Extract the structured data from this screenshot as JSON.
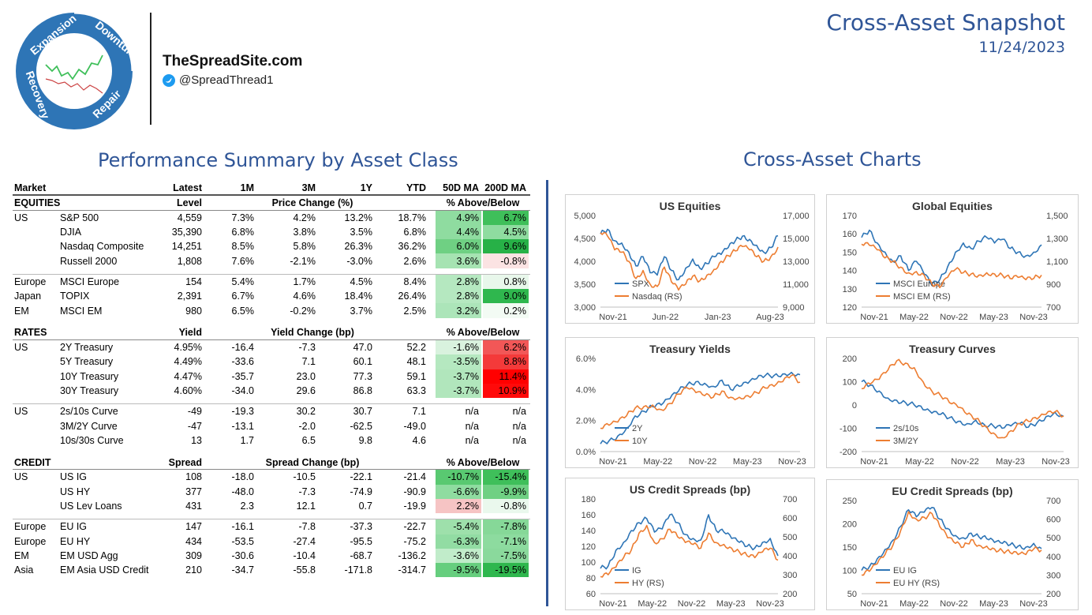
{
  "header": {
    "site": "TheSpreadSite.com",
    "handle": "@SpreadThread1",
    "title": "Cross-Asset Snapshot",
    "date": "11/24/2023",
    "logo_words": [
      "Expansion",
      "Downturn",
      "Repair",
      "Recovery"
    ]
  },
  "sections": {
    "perf_title": "Performance Summary by Asset Class",
    "charts_title": "Cross-Asset Charts"
  },
  "colors": {
    "brand_blue": "#2f5597",
    "series_blue": "#2e75b6",
    "series_orange": "#ed7d31",
    "green_strong": "#3fbf5a",
    "green_mid": "#8fdca0",
    "green_light": "#d9f2de",
    "red_strong": "#ff0000",
    "red_light": "#f8c8c8"
  },
  "table": {
    "columns": [
      "Market",
      "Latest",
      "1M",
      "3M",
      "1Y",
      "YTD",
      "50D MA",
      "200D MA"
    ],
    "equities": {
      "label": "EQUITIES",
      "level": "Level",
      "change": "Price Change (%)",
      "ma": "% Above/Below",
      "groups": [
        [
          {
            "region": "US",
            "name": "S&P 500",
            "level": "4,559",
            "m1": "7.3%",
            "m3": "4.2%",
            "y1": "13.2%",
            "ytd": "18.7%",
            "ma50": "4.9%",
            "ma200": "6.7%",
            "c50": "#8fdca0",
            "c200": "#3fbf5a"
          },
          {
            "region": "",
            "name": "DJIA",
            "level": "35,390",
            "m1": "6.8%",
            "m3": "3.8%",
            "y1": "3.5%",
            "ytd": "6.8%",
            "ma50": "4.4%",
            "ma200": "4.5%",
            "c50": "#8fdca0",
            "c200": "#8fdca0"
          },
          {
            "region": "",
            "name": "Nasdaq Composite",
            "level": "14,251",
            "m1": "8.5%",
            "m3": "5.8%",
            "y1": "26.3%",
            "ytd": "36.2%",
            "ma50": "6.0%",
            "ma200": "9.6%",
            "c50": "#6fd083",
            "c200": "#27b147"
          },
          {
            "region": "",
            "name": "Russell 2000",
            "level": "1,808",
            "m1": "7.6%",
            "m3": "-2.1%",
            "y1": "-3.0%",
            "ytd": "2.6%",
            "ma50": "3.6%",
            "ma200": "-0.8%",
            "c50": "#a6e3b2",
            "c200": "#fbe3e3"
          }
        ],
        [
          {
            "region": "Europe",
            "name": "MSCI Europe",
            "level": "154",
            "m1": "5.4%",
            "m3": "1.7%",
            "y1": "4.5%",
            "ytd": "8.4%",
            "ma50": "2.8%",
            "ma200": "0.8%",
            "c50": "#b5e8c0",
            "c200": "#e8f7eb"
          },
          {
            "region": "Japan",
            "name": "TOPIX",
            "level": "2,391",
            "m1": "6.7%",
            "m3": "4.6%",
            "y1": "18.4%",
            "ytd": "26.4%",
            "ma50": "2.8%",
            "ma200": "9.0%",
            "c50": "#b5e8c0",
            "c200": "#2fb74e"
          },
          {
            "region": "EM",
            "name": "MSCI EM",
            "level": "980",
            "m1": "6.5%",
            "m3": "-0.2%",
            "y1": "3.7%",
            "ytd": "2.5%",
            "ma50": "3.2%",
            "ma200": "0.2%",
            "c50": "#ace5b9",
            "c200": "#f3fbf4"
          }
        ]
      ]
    },
    "rates": {
      "label": "RATES",
      "level": "Yield",
      "change": "Yield Change (bp)",
      "ma": "% Above/Below",
      "groups": [
        [
          {
            "region": "US",
            "name": "2Y Treasury",
            "level": "4.95%",
            "m1": "-16.4",
            "m3": "-7.3",
            "y1": "47.0",
            "ytd": "52.2",
            "ma50": "-1.6%",
            "ma200": "6.2%",
            "c50": "#d9f2de",
            "c200": "#f25757"
          },
          {
            "region": "",
            "name": "5Y Treasury",
            "level": "4.49%",
            "m1": "-33.6",
            "m3": "7.1",
            "y1": "60.1",
            "ytd": "48.1",
            "ma50": "-3.5%",
            "ma200": "8.8%",
            "c50": "#b5e8c0",
            "c200": "#f43a3a"
          },
          {
            "region": "",
            "name": "10Y Treasury",
            "level": "4.47%",
            "m1": "-35.7",
            "m3": "23.0",
            "y1": "77.3",
            "ytd": "59.1",
            "ma50": "-3.7%",
            "ma200": "11.4%",
            "c50": "#b1e6bc",
            "c200": "#ff0000"
          },
          {
            "region": "",
            "name": "30Y Treasury",
            "level": "4.60%",
            "m1": "-34.0",
            "m3": "29.6",
            "y1": "86.8",
            "ytd": "63.3",
            "ma50": "-3.7%",
            "ma200": "10.9%",
            "c50": "#b1e6bc",
            "c200": "#ff0a0a"
          }
        ],
        [
          {
            "region": "US",
            "name": "2s/10s Curve",
            "level": "-49",
            "m1": "-19.3",
            "m3": "30.2",
            "y1": "30.7",
            "ytd": "7.1",
            "ma50": "n/a",
            "ma200": "n/a",
            "c50": "",
            "c200": ""
          },
          {
            "region": "",
            "name": "3M/2Y Curve",
            "level": "-47",
            "m1": "-13.1",
            "m3": "-2.0",
            "y1": "-62.5",
            "ytd": "-49.0",
            "ma50": "n/a",
            "ma200": "n/a",
            "c50": "",
            "c200": ""
          },
          {
            "region": "",
            "name": "10s/30s Curve",
            "level": "13",
            "m1": "1.7",
            "m3": "6.5",
            "y1": "9.8",
            "ytd": "4.6",
            "ma50": "n/a",
            "ma200": "n/a",
            "c50": "",
            "c200": ""
          }
        ]
      ]
    },
    "credit": {
      "label": "CREDIT",
      "level": "Spread",
      "change": "Spread Change (bp)",
      "ma": "% Above/Below",
      "groups": [
        [
          {
            "region": "US",
            "name": "US IG",
            "level": "108",
            "m1": "-18.0",
            "m3": "-10.5",
            "y1": "-22.1",
            "ytd": "-21.4",
            "ma50": "-10.7%",
            "ma200": "-15.4%",
            "c50": "#59c971",
            "c200": "#3fbf5a"
          },
          {
            "region": "",
            "name": "US HY",
            "level": "377",
            "m1": "-48.0",
            "m3": "-7.3",
            "y1": "-74.9",
            "ytd": "-90.9",
            "ma50": "-6.6%",
            "ma200": "-9.9%",
            "c50": "#8fdca0",
            "c200": "#6fd083"
          },
          {
            "region": "",
            "name": "US Lev Loans",
            "level": "431",
            "m1": "2.3",
            "m3": "12.1",
            "y1": "0.7",
            "ytd": "-19.9",
            "ma50": "2.2%",
            "ma200": "-0.8%",
            "c50": "#f6c4c4",
            "c200": "#eaf8ed"
          }
        ],
        [
          {
            "region": "Europe",
            "name": "EU IG",
            "level": "147",
            "m1": "-16.1",
            "m3": "-7.8",
            "y1": "-37.3",
            "ytd": "-22.7",
            "ma50": "-5.4%",
            "ma200": "-7.8%",
            "c50": "#9ee0ab",
            "c200": "#86d898"
          },
          {
            "region": "Europe",
            "name": "EU HY",
            "level": "434",
            "m1": "-53.5",
            "m3": "-27.4",
            "y1": "-95.5",
            "ytd": "-75.2",
            "ma50": "-6.3%",
            "ma200": "-7.1%",
            "c50": "#92dca3",
            "c200": "#8ddb9f"
          },
          {
            "region": "EM",
            "name": "EM USD Agg",
            "level": "309",
            "m1": "-30.6",
            "m3": "-10.4",
            "y1": "-68.7",
            "ytd": "-136.2",
            "ma50": "-3.6%",
            "ma200": "-7.5%",
            "c50": "#c1ecca",
            "c200": "#8ad99c"
          },
          {
            "region": "Asia",
            "name": "EM Asia USD Credit",
            "level": "210",
            "m1": "-34.7",
            "m3": "-55.8",
            "y1": "-171.8",
            "ytd": "-314.7",
            "ma50": "-9.5%",
            "ma200": "-19.5%",
            "c50": "#66ce7e",
            "c200": "#2fb74e"
          }
        ]
      ]
    }
  },
  "chart_data": [
    {
      "type": "line",
      "title": "US Equities",
      "x_ticks": [
        "Nov-21",
        "Jun-22",
        "Jan-23",
        "Aug-23"
      ],
      "y_left": {
        "ticks": [
          "3,000",
          "3,500",
          "4,000",
          "4,500",
          "5,000"
        ],
        "range": [
          3000,
          5000
        ]
      },
      "y_right": {
        "ticks": [
          "9,000",
          "11,000",
          "13,000",
          "15,000",
          "17,000"
        ],
        "range": [
          9000,
          17000
        ]
      },
      "series": [
        {
          "name": "SPX",
          "axis": "left",
          "color": "#2e75b6",
          "values": [
            4600,
            4700,
            4450,
            4400,
            4200,
            3900,
            4100,
            3750,
            3700,
            4100,
            3800,
            3600,
            3850,
            4050,
            3850,
            3950,
            4100,
            4150,
            4300,
            4450,
            4550,
            4480,
            4350,
            4200,
            4300,
            4559
          ]
        },
        {
          "name": "Nasdaq (RS)",
          "axis": "left_rs",
          "color": "#ed7d31",
          "values": [
            15500,
            15200,
            14000,
            13800,
            13000,
            11500,
            12200,
            11000,
            10800,
            12500,
            11200,
            10500,
            11000,
            11700,
            11300,
            11800,
            12300,
            13000,
            13500,
            13900,
            14300,
            14000,
            13400,
            13000,
            13400,
            14251
          ]
        }
      ]
    },
    {
      "type": "line",
      "title": "Global Equities",
      "x_ticks": [
        "Nov-21",
        "May-22",
        "Nov-22",
        "May-23",
        "Nov-23"
      ],
      "y_left": {
        "ticks": [
          "120",
          "130",
          "140",
          "150",
          "160",
          "170"
        ],
        "range": [
          120,
          170
        ]
      },
      "y_right": {
        "ticks": [
          "700",
          "900",
          "1,100",
          "1,300",
          "1,500"
        ],
        "range": [
          700,
          1500
        ]
      },
      "series": [
        {
          "name": "MSCI Europe",
          "axis": "left",
          "color": "#2e75b6",
          "values": [
            158,
            162,
            155,
            150,
            145,
            148,
            140,
            145,
            138,
            132,
            135,
            142,
            150,
            155,
            152,
            156,
            158,
            155,
            157,
            152,
            150,
            148,
            150,
            154
          ]
        },
        {
          "name": "MSCI EM (RS)",
          "axis": "right",
          "color": "#ed7d31",
          "values": [
            1250,
            1240,
            1200,
            1130,
            1100,
            1050,
            1000,
            1010,
            980,
            900,
            870,
            960,
            1030,
            1000,
            990,
            980,
            1000,
            990,
            980,
            950,
            960,
            940,
            950,
            980
          ]
        }
      ]
    },
    {
      "type": "line",
      "title": "Treasury Yields",
      "x_ticks": [
        "Nov-21",
        "May-22",
        "Nov-22",
        "May-23",
        "Nov-23"
      ],
      "y_left": {
        "ticks": [
          "0.0%",
          "2.0%",
          "4.0%",
          "6.0%"
        ],
        "range": [
          0,
          6
        ]
      },
      "series": [
        {
          "name": "2Y",
          "axis": "left",
          "color": "#2e75b6",
          "values": [
            0.5,
            0.7,
            1.0,
            1.5,
            2.3,
            2.6,
            2.9,
            3.0,
            3.4,
            3.9,
            4.3,
            4.5,
            4.4,
            4.2,
            4.6,
            4.0,
            4.2,
            4.4,
            4.7,
            4.9,
            4.9,
            5.0,
            5.1,
            4.95
          ]
        },
        {
          "name": "10Y",
          "axis": "left",
          "color": "#ed7d31",
          "values": [
            1.5,
            1.7,
            1.9,
            2.3,
            2.8,
            2.9,
            3.0,
            2.7,
            3.1,
            3.7,
            4.1,
            3.8,
            3.6,
            3.5,
            3.9,
            3.5,
            3.5,
            3.6,
            3.8,
            4.1,
            4.2,
            4.5,
            4.9,
            4.47
          ]
        }
      ]
    },
    {
      "type": "line",
      "title": "Treasury Curves",
      "x_ticks": [
        "Nov-21",
        "May-22",
        "Nov-22",
        "May-23",
        "Nov-23"
      ],
      "y_left": {
        "ticks": [
          "-200",
          "-100",
          "0",
          "100",
          "200"
        ],
        "range": [
          -200,
          200
        ]
      },
      "series": [
        {
          "name": "2s/10s",
          "axis": "left",
          "color": "#2e75b6",
          "values": [
            100,
            85,
            60,
            30,
            20,
            10,
            0,
            -20,
            -35,
            -40,
            -55,
            -70,
            -80,
            -65,
            -85,
            -90,
            -100,
            -90,
            -80,
            -95,
            -75,
            -50,
            -30,
            -49
          ]
        },
        {
          "name": "3M/2Y",
          "axis": "left",
          "color": "#ed7d31",
          "values": [
            70,
            90,
            110,
            150,
            190,
            180,
            160,
            100,
            60,
            40,
            10,
            -10,
            -40,
            -60,
            -90,
            -120,
            -140,
            -110,
            -80,
            -70,
            -60,
            -40,
            -30,
            -47
          ]
        }
      ]
    },
    {
      "type": "line",
      "title": "US Credit Spreads (bp)",
      "x_ticks": [
        "Nov-21",
        "May-22",
        "Nov-22",
        "May-23",
        "Nov-23"
      ],
      "y_left": {
        "ticks": [
          "60",
          "80",
          "100",
          "120",
          "140",
          "160",
          "180"
        ],
        "range": [
          60,
          180
        ]
      },
      "y_right": {
        "ticks": [
          "200",
          "300",
          "400",
          "500",
          "600",
          "700"
        ],
        "range": [
          200,
          700
        ]
      },
      "series": [
        {
          "name": "IG",
          "axis": "left",
          "color": "#2e75b6",
          "values": [
            92,
            95,
            115,
            125,
            140,
            150,
            155,
            138,
            142,
            160,
            150,
            135,
            130,
            128,
            160,
            140,
            138,
            130,
            125,
            120,
            118,
            125,
            130,
            108
          ]
        },
        {
          "name": "HY (RS)",
          "axis": "right",
          "color": "#ed7d31",
          "values": [
            290,
            300,
            340,
            390,
            430,
            520,
            560,
            470,
            490,
            540,
            500,
            470,
            460,
            440,
            520,
            470,
            460,
            440,
            420,
            400,
            390,
            420,
            440,
            377
          ]
        }
      ]
    },
    {
      "type": "line",
      "title": "EU Credit Spreads (bp)",
      "x_ticks": [
        "Nov-21",
        "May-22",
        "Nov-22",
        "May-23",
        "Nov-23"
      ],
      "y_left": {
        "ticks": [
          "50",
          "100",
          "150",
          "200",
          "250"
        ],
        "range": [
          50,
          250
        ]
      },
      "y_right": {
        "ticks": [
          "200",
          "300",
          "400",
          "500",
          "600",
          "700"
        ],
        "range": [
          200,
          700
        ]
      },
      "series": [
        {
          "name": "EU IG",
          "axis": "left",
          "color": "#2e75b6",
          "values": [
            100,
            108,
            125,
            145,
            165,
            195,
            230,
            215,
            225,
            235,
            210,
            190,
            175,
            170,
            180,
            172,
            168,
            160,
            158,
            155,
            152,
            150,
            158,
            147
          ]
        },
        {
          "name": "EU HY (RS)",
          "axis": "right",
          "color": "#ed7d31",
          "values": [
            300,
            320,
            360,
            410,
            460,
            540,
            640,
            600,
            610,
            630,
            560,
            500,
            470,
            450,
            490,
            460,
            455,
            440,
            430,
            420,
            410,
            410,
            440,
            434
          ]
        }
      ]
    }
  ]
}
